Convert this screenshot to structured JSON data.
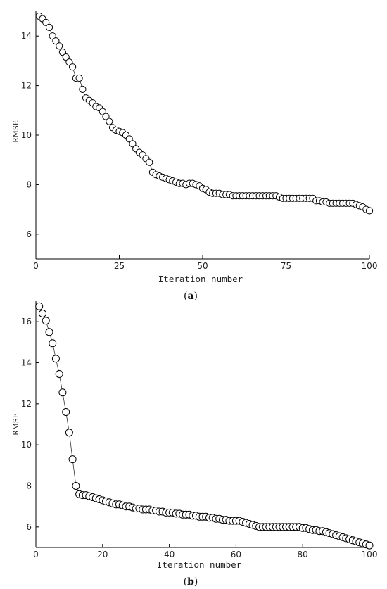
{
  "chart_data": [
    {
      "type": "scatter",
      "caption_prefix": "(",
      "caption_letter": "a",
      "caption_suffix": ")",
      "xlabel": "Iteration number",
      "ylabel": "RMSE",
      "xlim": [
        0,
        100
      ],
      "ylim": [
        5,
        15
      ],
      "xticks": [
        0,
        25,
        50,
        75,
        100
      ],
      "yticks": [
        6,
        8,
        10,
        12,
        14
      ],
      "grid": false,
      "marker": "open-circle",
      "connecting_line": true,
      "x": [
        1,
        2,
        3,
        4,
        5,
        6,
        7,
        8,
        9,
        10,
        11,
        12,
        13,
        14,
        15,
        16,
        17,
        18,
        19,
        20,
        21,
        22,
        23,
        24,
        25,
        26,
        27,
        28,
        29,
        30,
        31,
        32,
        33,
        34,
        35,
        36,
        37,
        38,
        39,
        40,
        41,
        42,
        43,
        44,
        45,
        46,
        47,
        48,
        49,
        50,
        51,
        52,
        53,
        54,
        55,
        56,
        57,
        58,
        59,
        60,
        61,
        62,
        63,
        64,
        65,
        66,
        67,
        68,
        69,
        70,
        71,
        72,
        73,
        74,
        75,
        76,
        77,
        78,
        79,
        80,
        81,
        82,
        83,
        84,
        85,
        86,
        87,
        88,
        89,
        90,
        91,
        92,
        93,
        94,
        95,
        96,
        97,
        98,
        99,
        100
      ],
      "y": [
        14.8,
        14.7,
        14.55,
        14.35,
        14.0,
        13.8,
        13.6,
        13.35,
        13.15,
        12.95,
        12.75,
        12.3,
        12.3,
        11.85,
        11.5,
        11.4,
        11.3,
        11.15,
        11.1,
        10.95,
        10.75,
        10.55,
        10.3,
        10.2,
        10.15,
        10.1,
        10.0,
        9.85,
        9.65,
        9.45,
        9.3,
        9.2,
        9.05,
        8.9,
        8.5,
        8.4,
        8.35,
        8.3,
        8.25,
        8.2,
        8.15,
        8.1,
        8.05,
        8.05,
        8.0,
        8.05,
        8.05,
        8.0,
        7.95,
        7.85,
        7.8,
        7.7,
        7.65,
        7.65,
        7.65,
        7.6,
        7.6,
        7.6,
        7.55,
        7.55,
        7.55,
        7.55,
        7.55,
        7.55,
        7.55,
        7.55,
        7.55,
        7.55,
        7.55,
        7.55,
        7.55,
        7.55,
        7.5,
        7.45,
        7.45,
        7.45,
        7.45,
        7.45,
        7.45,
        7.45,
        7.45,
        7.45,
        7.45,
        7.35,
        7.35,
        7.3,
        7.3,
        7.25,
        7.25,
        7.25,
        7.25,
        7.25,
        7.25,
        7.25,
        7.25,
        7.2,
        7.15,
        7.1,
        7.0,
        6.95
      ]
    },
    {
      "type": "scatter",
      "caption_prefix": "(",
      "caption_letter": "b",
      "caption_suffix": ")",
      "xlabel": "Iteration number",
      "ylabel": "RMSE",
      "xlim": [
        0,
        100
      ],
      "ylim": [
        5,
        17
      ],
      "xticks": [
        0,
        20,
        40,
        60,
        80,
        100
      ],
      "yticks": [
        6,
        8,
        10,
        12,
        14,
        16
      ],
      "grid": false,
      "marker": "open-circle",
      "connecting_line": true,
      "x": [
        1,
        2,
        3,
        4,
        5,
        6,
        7,
        8,
        9,
        10,
        11,
        12,
        13,
        14,
        15,
        16,
        17,
        18,
        19,
        20,
        21,
        22,
        23,
        24,
        25,
        26,
        27,
        28,
        29,
        30,
        31,
        32,
        33,
        34,
        35,
        36,
        37,
        38,
        39,
        40,
        41,
        42,
        43,
        44,
        45,
        46,
        47,
        48,
        49,
        50,
        51,
        52,
        53,
        54,
        55,
        56,
        57,
        58,
        59,
        60,
        61,
        62,
        63,
        64,
        65,
        66,
        67,
        68,
        69,
        70,
        71,
        72,
        73,
        74,
        75,
        76,
        77,
        78,
        79,
        80,
        81,
        82,
        83,
        84,
        85,
        86,
        87,
        88,
        89,
        90,
        91,
        92,
        93,
        94,
        95,
        96,
        97,
        98,
        99,
        100
      ],
      "y": [
        16.75,
        16.4,
        16.05,
        15.5,
        14.95,
        14.2,
        13.45,
        12.55,
        11.6,
        10.6,
        9.3,
        8.0,
        7.6,
        7.55,
        7.55,
        7.5,
        7.45,
        7.4,
        7.35,
        7.3,
        7.25,
        7.2,
        7.15,
        7.1,
        7.1,
        7.05,
        7.0,
        7.0,
        6.95,
        6.9,
        6.9,
        6.85,
        6.85,
        6.85,
        6.8,
        6.8,
        6.75,
        6.75,
        6.7,
        6.7,
        6.7,
        6.65,
        6.65,
        6.6,
        6.6,
        6.6,
        6.55,
        6.55,
        6.5,
        6.5,
        6.5,
        6.45,
        6.45,
        6.4,
        6.4,
        6.35,
        6.35,
        6.3,
        6.3,
        6.3,
        6.3,
        6.25,
        6.2,
        6.15,
        6.1,
        6.05,
        6.0,
        6.0,
        6.0,
        6.0,
        6.0,
        6.0,
        6.0,
        6.0,
        6.0,
        6.0,
        6.0,
        6.0,
        6.0,
        5.95,
        5.95,
        5.9,
        5.85,
        5.85,
        5.8,
        5.8,
        5.75,
        5.7,
        5.65,
        5.6,
        5.55,
        5.5,
        5.45,
        5.4,
        5.35,
        5.3,
        5.25,
        5.2,
        5.15,
        5.1
      ]
    }
  ]
}
